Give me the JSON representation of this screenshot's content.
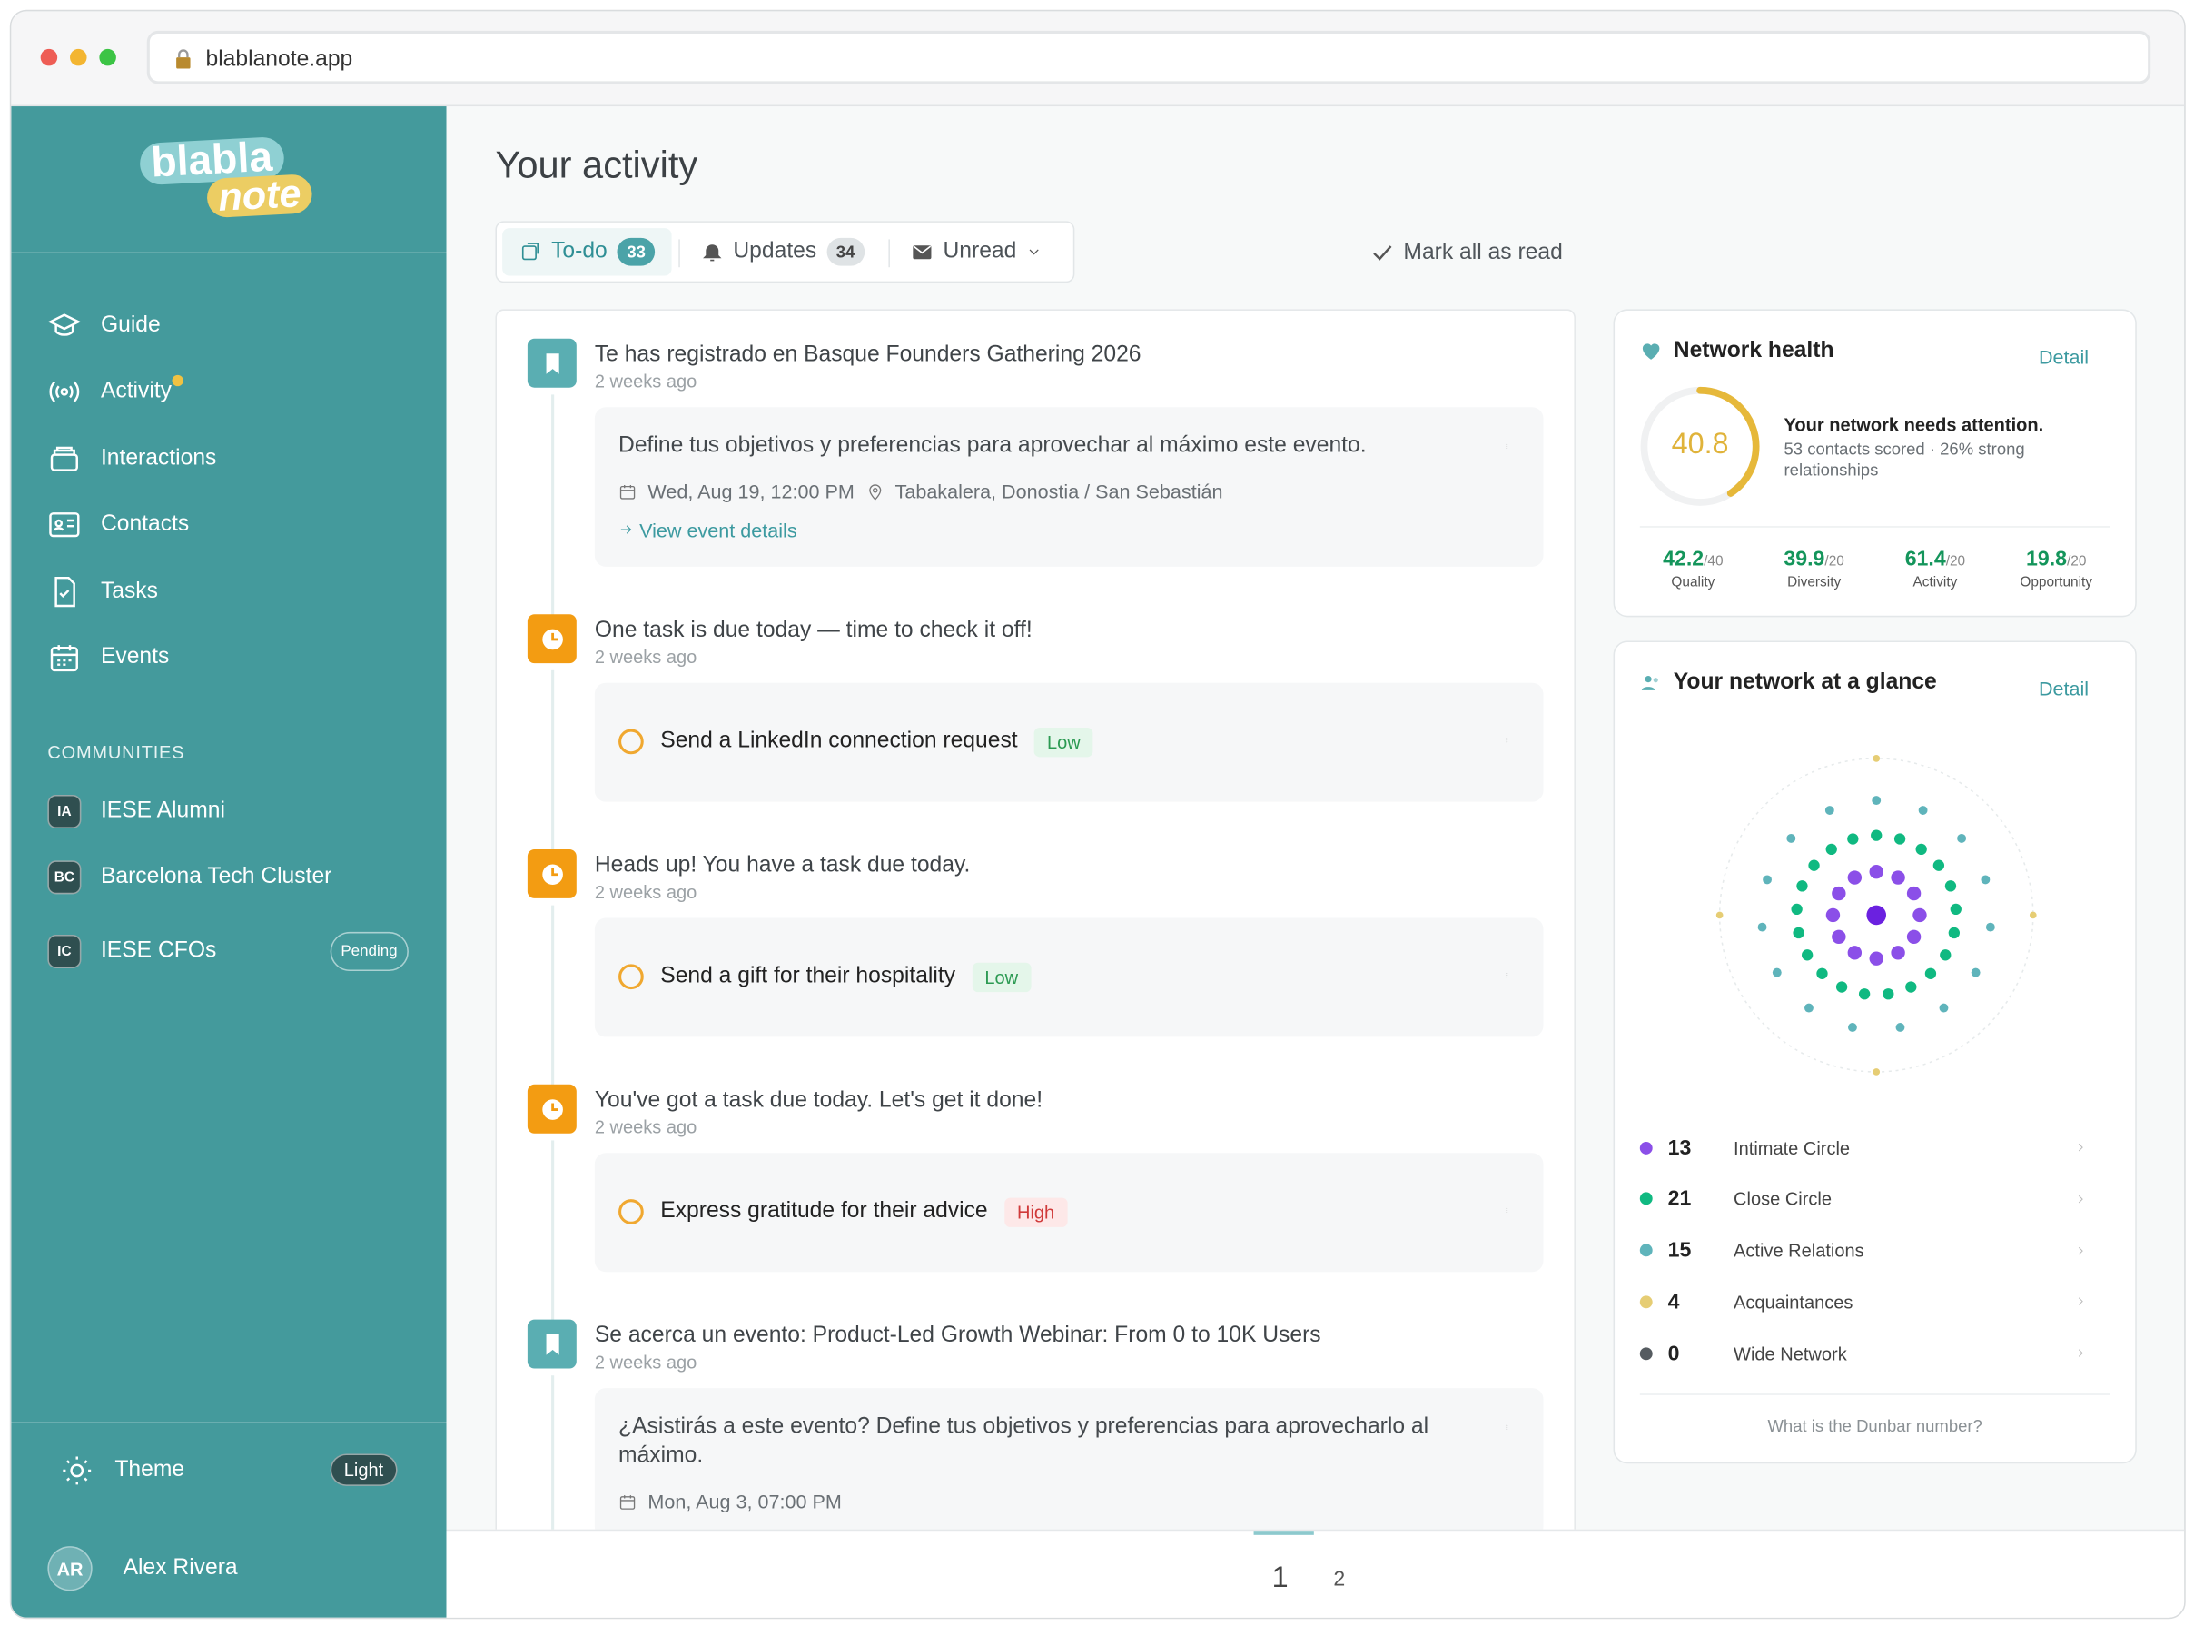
{
  "browser": {
    "url": "blablanote.app"
  },
  "sidebar": {
    "logo_top": "blabla",
    "logo_bottom": "note",
    "nav": [
      "Guide",
      "Activity",
      "Interactions",
      "Contacts",
      "Tasks",
      "Events"
    ],
    "communities_heading": "COMMUNITIES",
    "communities": [
      {
        "initials": "IA",
        "name": "IESE Alumni"
      },
      {
        "initials": "BC",
        "name": "Barcelona Tech Cluster"
      },
      {
        "initials": "IC",
        "name": "IESE CFOs",
        "badge": "Pending"
      }
    ],
    "theme": {
      "label": "Theme",
      "value": "Light"
    },
    "user": {
      "initials": "AR",
      "name": "Alex Rivera"
    }
  },
  "main": {
    "title": "Your activity",
    "tabs": [
      {
        "label": "To-do",
        "count": 33
      },
      {
        "label": "Updates",
        "count": 34
      },
      {
        "label": "Unread"
      }
    ],
    "mark_all": "Mark all as read",
    "feed": [
      {
        "kind": "event",
        "title": "Te has registrado en Basque Founders Gathering 2026",
        "time": "2 weeks ago",
        "body": "Define tus objetivos y preferencias para aprovechar al máximo este evento.",
        "date": "Wed, Aug 19, 12:00 PM",
        "location": "Tabakalera, Donostia / San Sebastián",
        "link": "View event details"
      },
      {
        "kind": "task",
        "title": "One task is due today — time to check it off!",
        "time": "2 weeks ago",
        "task": "Send a LinkedIn connection request",
        "priority": "Low"
      },
      {
        "kind": "task",
        "title": "Heads up! You have a task due today.",
        "time": "2 weeks ago",
        "task": "Send a gift for their hospitality",
        "priority": "Low"
      },
      {
        "kind": "task",
        "title": "You've got a task due today. Let's get it done!",
        "time": "2 weeks ago",
        "task": "Express gratitude for their advice",
        "priority": "High"
      },
      {
        "kind": "event",
        "title": "Se acerca un evento: Product-Led Growth Webinar: From 0 to 10K Users",
        "time": "2 weeks ago",
        "body": "¿Asistirás a este evento? Define tus objetivos y preferencias para aprovecharlo al máximo.",
        "date": "Mon, Aug 3, 07:00 PM"
      }
    ],
    "pages": [
      1,
      2
    ],
    "current_page": 1
  },
  "network_health": {
    "title": "Network health",
    "detail": "Detail",
    "score": 40.8,
    "scorelim": [
      0,
      100
    ],
    "headline": "Your network needs attention.",
    "summary": "53 contacts scored · 26% strong relationships",
    "metrics": [
      {
        "value": 42.2,
        "max_label": "/40",
        "label": "Quality"
      },
      {
        "value": 39.9,
        "max_label": "/20",
        "label": "Diversity"
      },
      {
        "value": 61.4,
        "max_label": "/20",
        "label": "Activity"
      },
      {
        "value": 19.8,
        "max_label": "/20",
        "label": "Opportunity"
      }
    ]
  },
  "glance": {
    "title": "Your network at a glance",
    "detail": "Detail",
    "circles": [
      {
        "count": 13,
        "label": "Intimate Circle",
        "color": "#8b4fe8"
      },
      {
        "count": 21,
        "label": "Close Circle",
        "color": "#10b981"
      },
      {
        "count": 15,
        "label": "Active Relations",
        "color": "#5fb4bb"
      },
      {
        "count": 4,
        "label": "Acquaintances",
        "color": "#e6cd74"
      },
      {
        "count": 0,
        "label": "Wide Network",
        "color": "#555b60"
      }
    ],
    "footer": "What is the Dunbar number?"
  }
}
